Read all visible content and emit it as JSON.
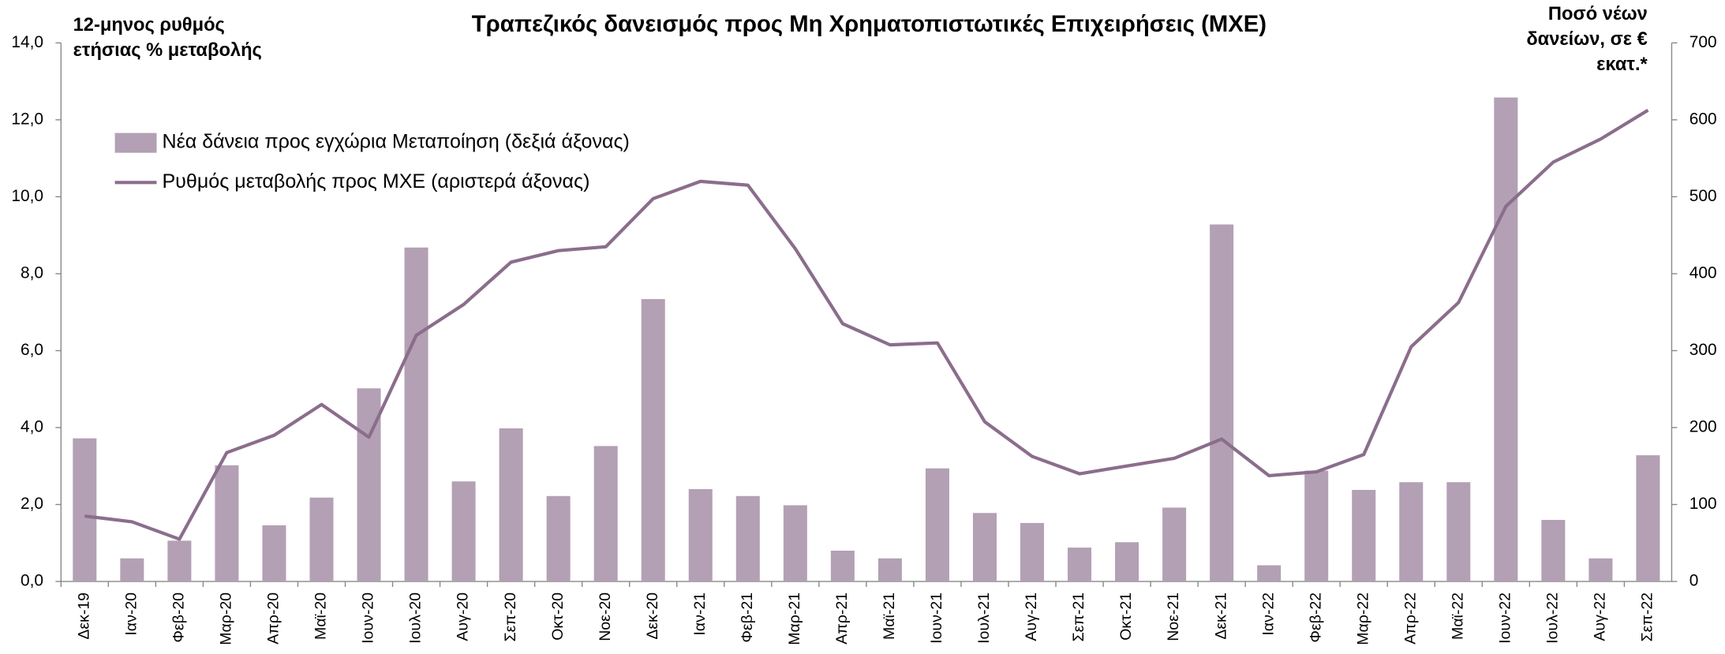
{
  "chart_data": {
    "type": "bar-line",
    "title": "Τραπεζικός δανεισμός προς Μη Χρηματοπιστωτικές Επιχειρήσεις (ΜΧΕ)",
    "y_label": "12-μηνος ρυθμός ετήσιας % μεταβολής",
    "y2_label": "Ποσό νέων δανείων, σε € εκατ.*",
    "categories": [
      "Δεκ-19",
      "Ιαν-20",
      "Φεβ-20",
      "Μαρ-20",
      "Απρ-20",
      "Μαϊ-20",
      "Ιουν-20",
      "Ιουλ-20",
      "Αυγ-20",
      "Σεπ-20",
      "Οκτ-20",
      "Νοε-20",
      "Δεκ-20",
      "Ιαν-21",
      "Φεβ-21",
      "Μαρ-21",
      "Απρ-21",
      "Μαϊ-21",
      "Ιουν-21",
      "Ιουλ-21",
      "Αυγ-21",
      "Σεπ-21",
      "Οκτ-21",
      "Νοε-21",
      "Δεκ-21",
      "Ιαν-22",
      "Φεβ-22",
      "Μαρ-22",
      "Απρ-22",
      "Μαϊ-22",
      "Ιουν-22",
      "Ιουλ-22",
      "Αυγ-22",
      "Σεπ-22"
    ],
    "series": [
      {
        "name": "Νέα δάνεια προς εγχώρια Μεταποίηση (δεξιά άξονας)",
        "type": "bar",
        "axis": "y2",
        "color": "#b3a0b4",
        "values": [
          186,
          30,
          53,
          151,
          73,
          109,
          251,
          434,
          130,
          199,
          111,
          176,
          367,
          120,
          111,
          99,
          40,
          30,
          147,
          89,
          76,
          44,
          51,
          96,
          464,
          21,
          144,
          119,
          129,
          129,
          629,
          80,
          30,
          164
        ]
      },
      {
        "name": "Ρυθμός μεταβολής προς ΜΧΕ (αριστερά άξονας)",
        "type": "line",
        "axis": "y",
        "color": "#8b6d8c",
        "values": [
          1.7,
          1.55,
          1.1,
          3.35,
          3.8,
          4.6,
          3.75,
          6.4,
          7.2,
          8.3,
          8.6,
          8.7,
          9.95,
          10.4,
          10.3,
          8.65,
          6.7,
          6.15,
          6.2,
          4.15,
          3.25,
          2.8,
          3.0,
          3.2,
          3.7,
          2.75,
          2.85,
          3.3,
          6.1,
          7.25,
          9.75,
          10.9,
          11.5,
          12.25
        ]
      }
    ],
    "ylim": [
      0,
      14
    ],
    "yticks": [
      {
        "value": 0,
        "label": "0,0"
      },
      {
        "value": 2,
        "label": "2,0"
      },
      {
        "value": 4,
        "label": "4,0"
      },
      {
        "value": 6,
        "label": "6,0"
      },
      {
        "value": 8,
        "label": "8,0"
      },
      {
        "value": 10,
        "label": "10,0"
      },
      {
        "value": 12,
        "label": "12,0"
      },
      {
        "value": 14,
        "label": "14,0"
      }
    ],
    "y2lim": [
      0,
      700
    ],
    "y2ticks": [
      0,
      100,
      200,
      300,
      400,
      500,
      600,
      700
    ],
    "grid": false,
    "legend": "upper-left"
  }
}
